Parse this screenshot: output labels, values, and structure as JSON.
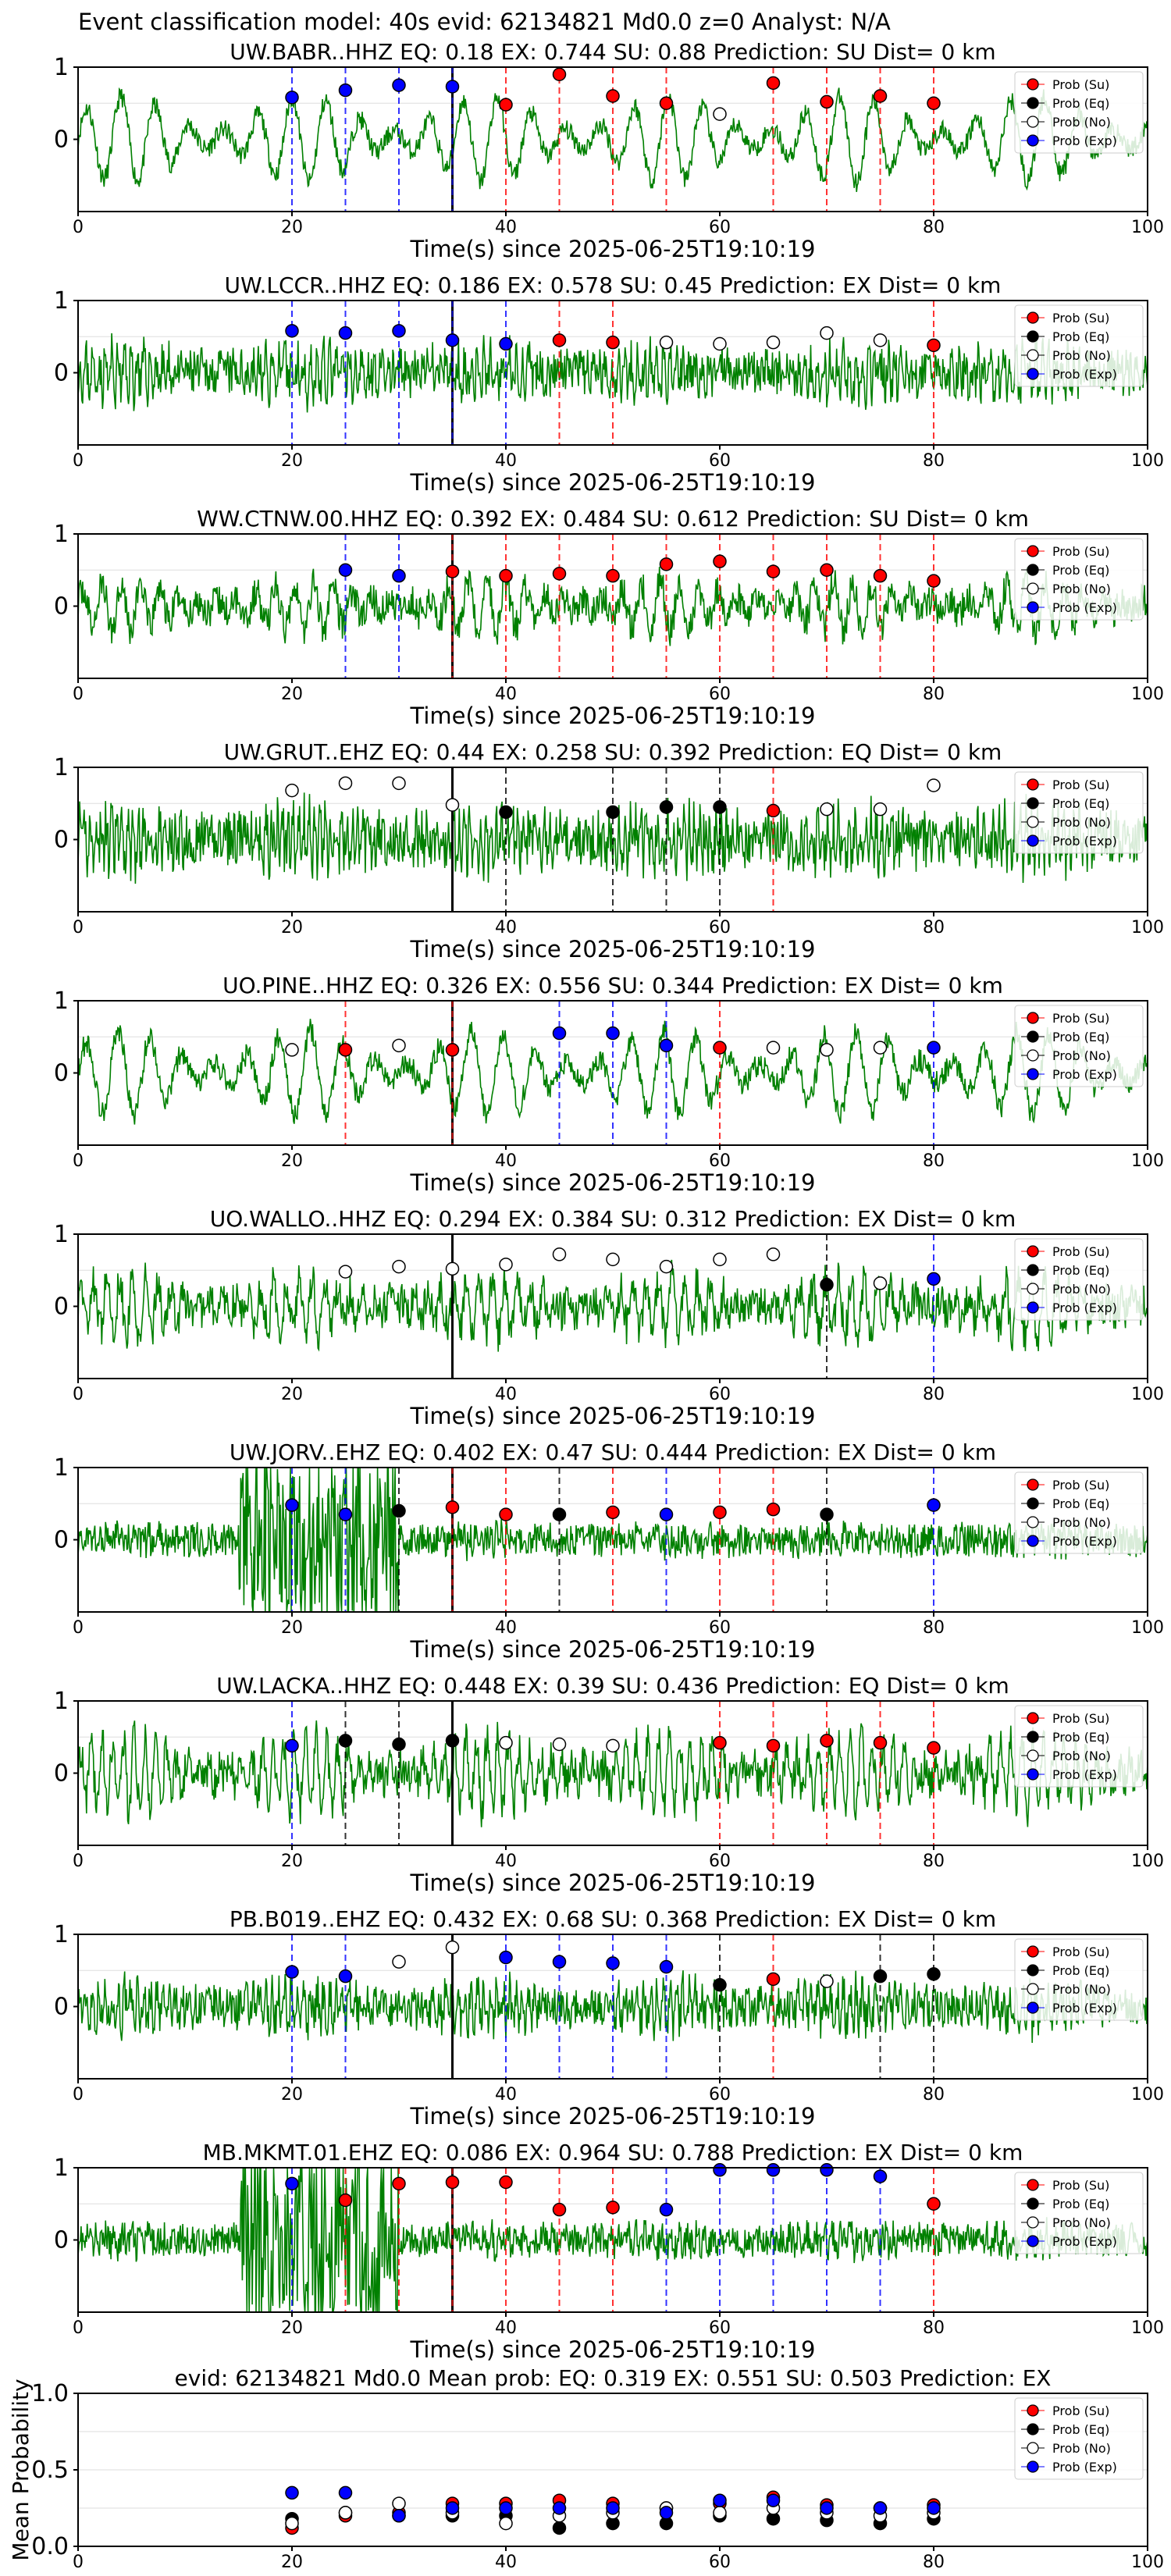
{
  "figure_title": "Event classification model: 40s evid: 62134821 Md0.0 z=0 Analyst: N/A",
  "legend": [
    "Prob (Su)",
    "Prob (Eq)",
    "Prob (No)",
    "Prob (Exp)"
  ],
  "colors": {
    "su": "#ff0000",
    "eq": "#000000",
    "no": "#ffffff",
    "exp": "#0000ff",
    "trace": "#008000",
    "marker_edge": "#000000"
  },
  "chart_data": [
    {
      "type": "line",
      "title": "UW.BABR..HHZ    EQ: 0.18   EX: 0.744   SU: 0.88    Prediction: SU     Dist= 0 km",
      "xlabel": "Time(s) since 2025-06-25T19:10:19",
      "xlim": [
        0,
        100
      ],
      "ylim": [
        -1,
        1
      ],
      "yticks": [
        0,
        1
      ],
      "xticks": [
        0,
        20,
        40,
        60,
        80,
        100
      ],
      "grid": true,
      "legend_position": "top-right",
      "vline_black": 35,
      "trace": {
        "amp": 0.6,
        "period": 3.2,
        "noise": 0.3,
        "seed": 11
      },
      "points": [
        [
          20,
          "exp",
          0.58
        ],
        [
          25,
          "exp",
          0.68
        ],
        [
          30,
          "exp",
          0.75
        ],
        [
          35,
          "exp",
          0.73
        ],
        [
          40,
          "su",
          0.48
        ],
        [
          45,
          "su",
          0.9
        ],
        [
          50,
          "su",
          0.6
        ],
        [
          55,
          "su",
          0.5
        ],
        [
          60,
          "no",
          0.35
        ],
        [
          65,
          "su",
          0.78
        ],
        [
          70,
          "su",
          0.52
        ],
        [
          75,
          "su",
          0.6
        ],
        [
          80,
          "su",
          0.5
        ]
      ]
    },
    {
      "type": "line",
      "title": "UW.LCCR..HHZ    EQ: 0.186   EX: 0.578   SU: 0.45    Prediction: EX     Dist= 0 km",
      "xlabel": "Time(s) since 2025-06-25T19:10:19",
      "xlim": [
        0,
        100
      ],
      "ylim": [
        -1,
        1
      ],
      "yticks": [
        0,
        1
      ],
      "xticks": [
        0,
        20,
        40,
        60,
        80,
        100
      ],
      "grid": true,
      "legend_position": "top-right",
      "vline_black": 35,
      "trace": {
        "amp": 0.25,
        "period": 0.6,
        "noise": 0.7,
        "seed": 23
      },
      "points": [
        [
          20,
          "exp",
          0.58
        ],
        [
          25,
          "exp",
          0.55
        ],
        [
          30,
          "exp",
          0.58
        ],
        [
          35,
          "exp",
          0.45
        ],
        [
          40,
          "exp",
          0.4
        ],
        [
          45,
          "su",
          0.45
        ],
        [
          50,
          "su",
          0.42
        ],
        [
          55,
          "no",
          0.42
        ],
        [
          60,
          "no",
          0.4
        ],
        [
          65,
          "no",
          0.42
        ],
        [
          70,
          "no",
          0.55
        ],
        [
          75,
          "no",
          0.45
        ],
        [
          80,
          "su",
          0.38
        ]
      ]
    },
    {
      "type": "line",
      "title": "WW.CTNW.00.HHZ    EQ: 0.392   EX: 0.484   SU: 0.612    Prediction: SU     Dist= 0 km",
      "xlabel": "Time(s) since 2025-06-25T19:10:19",
      "xlim": [
        0,
        100
      ],
      "ylim": [
        -1,
        1
      ],
      "yticks": [
        0,
        1
      ],
      "xticks": [
        0,
        20,
        40,
        60,
        80,
        100
      ],
      "grid": true,
      "legend_position": "top-right",
      "vline_black": 35,
      "trace": {
        "amp": 0.35,
        "period": 1.8,
        "noise": 0.5,
        "seed": 37
      },
      "points": [
        [
          25,
          "exp",
          0.5
        ],
        [
          30,
          "exp",
          0.42
        ],
        [
          35,
          "su",
          0.48
        ],
        [
          40,
          "su",
          0.42
        ],
        [
          45,
          "su",
          0.45
        ],
        [
          50,
          "su",
          0.42
        ],
        [
          55,
          "su",
          0.58
        ],
        [
          60,
          "su",
          0.62
        ],
        [
          65,
          "su",
          0.48
        ],
        [
          70,
          "su",
          0.5
        ],
        [
          75,
          "su",
          0.42
        ],
        [
          80,
          "su",
          0.35
        ]
      ]
    },
    {
      "type": "line",
      "title": "UW.GRUT..EHZ    EQ: 0.44   EX: 0.258   SU: 0.392    Prediction: EQ     Dist= 0 km",
      "xlabel": "Time(s) since 2025-06-25T19:10:19",
      "xlim": [
        0,
        100
      ],
      "ylim": [
        -1,
        1
      ],
      "yticks": [
        0,
        1
      ],
      "xticks": [
        0,
        20,
        40,
        60,
        80,
        100
      ],
      "grid": true,
      "legend_position": "top-right",
      "vline_black": 35,
      "trace": {
        "amp": 0.3,
        "period": 0.5,
        "noise": 0.8,
        "seed": 41
      },
      "points": [
        [
          20,
          "no",
          0.68
        ],
        [
          25,
          "no",
          0.78
        ],
        [
          30,
          "no",
          0.78
        ],
        [
          35,
          "no",
          0.48
        ],
        [
          40,
          "eq",
          0.38
        ],
        [
          50,
          "eq",
          0.38
        ],
        [
          55,
          "eq",
          0.45
        ],
        [
          60,
          "eq",
          0.45
        ],
        [
          65,
          "su",
          0.4
        ],
        [
          70,
          "no",
          0.42
        ],
        [
          75,
          "no",
          0.42
        ],
        [
          80,
          "no",
          0.75
        ]
      ]
    },
    {
      "type": "line",
      "title": "UO.PINE..HHZ    EQ: 0.326   EX: 0.556   SU: 0.344    Prediction: EX     Dist= 0 km",
      "xlabel": "Time(s) since 2025-06-25T19:10:19",
      "xlim": [
        0,
        100
      ],
      "ylim": [
        -1,
        1
      ],
      "yticks": [
        0,
        1
      ],
      "xticks": [
        0,
        20,
        40,
        60,
        80,
        100
      ],
      "grid": true,
      "legend_position": "top-right",
      "vline_black": 35,
      "trace": {
        "amp": 0.6,
        "period": 3.0,
        "noise": 0.35,
        "seed": 53
      },
      "points": [
        [
          20,
          "no",
          0.32
        ],
        [
          25,
          "su",
          0.32
        ],
        [
          30,
          "no",
          0.38
        ],
        [
          35,
          "su",
          0.32
        ],
        [
          45,
          "exp",
          0.55
        ],
        [
          50,
          "exp",
          0.55
        ],
        [
          55,
          "exp",
          0.38
        ],
        [
          60,
          "su",
          0.35
        ],
        [
          65,
          "no",
          0.35
        ],
        [
          70,
          "no",
          0.32
        ],
        [
          75,
          "no",
          0.35
        ],
        [
          80,
          "exp",
          0.35
        ]
      ]
    },
    {
      "type": "line",
      "title": "UO.WALLO..HHZ    EQ: 0.294   EX: 0.384   SU: 0.312    Prediction: EX     Dist= 0 km",
      "xlabel": "Time(s) since 2025-06-25T19:10:19",
      "xlim": [
        0,
        100
      ],
      "ylim": [
        -1,
        1
      ],
      "yticks": [
        0,
        1
      ],
      "xticks": [
        0,
        20,
        40,
        60,
        80,
        100
      ],
      "grid": true,
      "legend_position": "top-right",
      "vline_black": 35,
      "trace": {
        "amp": 0.4,
        "period": 1.2,
        "noise": 0.6,
        "seed": 67
      },
      "points": [
        [
          25,
          "no",
          0.48
        ],
        [
          30,
          "no",
          0.55
        ],
        [
          35,
          "no",
          0.52
        ],
        [
          40,
          "no",
          0.58
        ],
        [
          45,
          "no",
          0.72
        ],
        [
          50,
          "no",
          0.65
        ],
        [
          55,
          "no",
          0.55
        ],
        [
          60,
          "no",
          0.65
        ],
        [
          65,
          "no",
          0.72
        ],
        [
          70,
          "eq",
          0.3
        ],
        [
          75,
          "no",
          0.32
        ],
        [
          80,
          "exp",
          0.38
        ]
      ]
    },
    {
      "type": "line",
      "title": "UW.JORV..EHZ    EQ: 0.402   EX: 0.47   SU: 0.444    Prediction: EX     Dist= 0 km",
      "xlabel": "Time(s) since 2025-06-25T19:10:19",
      "xlim": [
        0,
        100
      ],
      "ylim": [
        -1,
        1
      ],
      "yticks": [
        0,
        1
      ],
      "xticks": [
        0,
        20,
        40,
        60,
        80,
        100
      ],
      "grid": true,
      "legend_position": "top-right",
      "vline_black": 35,
      "trace": {
        "amp": 0.08,
        "period": 0.5,
        "noise": 0.5,
        "seed": 71
      },
      "points": [
        [
          20,
          "exp",
          0.48
        ],
        [
          25,
          "exp",
          0.35
        ],
        [
          30,
          "eq",
          0.4
        ],
        [
          35,
          "su",
          0.45
        ],
        [
          40,
          "su",
          0.35
        ],
        [
          45,
          "eq",
          0.35
        ],
        [
          50,
          "su",
          0.38
        ],
        [
          55,
          "exp",
          0.35
        ],
        [
          60,
          "su",
          0.38
        ],
        [
          65,
          "su",
          0.42
        ],
        [
          70,
          "eq",
          0.35
        ],
        [
          80,
          "exp",
          0.48
        ]
      ]
    },
    {
      "type": "line",
      "title": "UW.LACKA..HHZ    EQ: 0.448   EX: 0.39   SU: 0.436    Prediction: EQ     Dist= 0 km",
      "xlabel": "Time(s) since 2025-06-25T19:10:19",
      "xlim": [
        0,
        100
      ],
      "ylim": [
        -1,
        1
      ],
      "yticks": [
        0,
        1
      ],
      "xticks": [
        0,
        20,
        40,
        60,
        80,
        100
      ],
      "grid": true,
      "legend_position": "top-right",
      "vline_black": 35,
      "trace": {
        "amp": 0.5,
        "period": 1.0,
        "noise": 0.6,
        "seed": 83
      },
      "points": [
        [
          20,
          "exp",
          0.38
        ],
        [
          25,
          "eq",
          0.45
        ],
        [
          30,
          "eq",
          0.4
        ],
        [
          35,
          "eq",
          0.45
        ],
        [
          40,
          "no",
          0.42
        ],
        [
          45,
          "no",
          0.4
        ],
        [
          50,
          "no",
          0.38
        ],
        [
          60,
          "su",
          0.42
        ],
        [
          65,
          "su",
          0.38
        ],
        [
          70,
          "su",
          0.45
        ],
        [
          75,
          "su",
          0.42
        ],
        [
          80,
          "su",
          0.35
        ]
      ]
    },
    {
      "type": "line",
      "title": "PB.B019..EHZ    EQ: 0.432   EX: 0.68   SU: 0.368    Prediction: EX     Dist= 0 km",
      "xlabel": "Time(s) since 2025-06-25T19:10:19",
      "xlim": [
        0,
        100
      ],
      "ylim": [
        -1,
        1
      ],
      "yticks": [
        0,
        1
      ],
      "xticks": [
        0,
        20,
        40,
        60,
        80,
        100
      ],
      "grid": true,
      "legend_position": "top-right",
      "vline_black": 35,
      "trace": {
        "amp": 0.25,
        "period": 0.6,
        "noise": 0.6,
        "seed": 97
      },
      "points": [
        [
          20,
          "exp",
          0.48
        ],
        [
          25,
          "exp",
          0.42
        ],
        [
          30,
          "no",
          0.62
        ],
        [
          35,
          "no",
          0.82
        ],
        [
          40,
          "exp",
          0.68
        ],
        [
          45,
          "exp",
          0.62
        ],
        [
          50,
          "exp",
          0.6
        ],
        [
          55,
          "exp",
          0.55
        ],
        [
          60,
          "eq",
          0.3
        ],
        [
          65,
          "su",
          0.38
        ],
        [
          70,
          "no",
          0.35
        ],
        [
          75,
          "eq",
          0.42
        ],
        [
          80,
          "eq",
          0.45
        ]
      ]
    },
    {
      "type": "line",
      "title": "MB.MKMT.01.EHZ    EQ: 0.086   EX: 0.964   SU: 0.788    Prediction: EX     Dist= 0 km",
      "xlabel": "Time(s) since 2025-06-25T19:10:19",
      "xlim": [
        0,
        100
      ],
      "ylim": [
        -1,
        1
      ],
      "yticks": [
        0,
        1
      ],
      "xticks": [
        0,
        20,
        40,
        60,
        80,
        100
      ],
      "grid": true,
      "legend_position": "top-right",
      "vline_black": 35,
      "trace": {
        "amp": 0.1,
        "period": 0.8,
        "noise": 0.5,
        "seed": 101
      },
      "points": [
        [
          20,
          "exp",
          0.78
        ],
        [
          25,
          "su",
          0.55
        ],
        [
          30,
          "su",
          0.78
        ],
        [
          35,
          "su",
          0.8
        ],
        [
          40,
          "su",
          0.8
        ],
        [
          45,
          "su",
          0.42
        ],
        [
          50,
          "su",
          0.45
        ],
        [
          55,
          "exp",
          0.42
        ],
        [
          60,
          "exp",
          0.97
        ],
        [
          65,
          "exp",
          0.97
        ],
        [
          70,
          "exp",
          0.97
        ],
        [
          75,
          "exp",
          0.88
        ],
        [
          80,
          "su",
          0.5
        ]
      ]
    },
    {
      "type": "scatter",
      "title": "evid: 62134821  Md0.0   Mean prob:    EQ: 0.319  EX: 0.551  SU: 0.503   Prediction: EX",
      "xlabel": "",
      "ylabel": "Mean Probability",
      "xlim": [
        0,
        100
      ],
      "ylim": [
        0,
        1
      ],
      "yticks": [
        0.0,
        0.5,
        1.0
      ],
      "xticks": [
        0,
        20,
        40,
        60,
        80,
        100
      ],
      "grid": true,
      "legend_position": "top-right",
      "series": [
        {
          "name": "Prob (Su)",
          "cls": "su",
          "x": [
            20,
            25,
            30,
            35,
            40,
            45,
            50,
            55,
            60,
            65,
            70,
            75,
            80
          ],
          "y": [
            0.12,
            0.2,
            0.22,
            0.28,
            0.28,
            0.3,
            0.28,
            0.25,
            0.28,
            0.32,
            0.27,
            0.25,
            0.27
          ]
        },
        {
          "name": "Prob (Eq)",
          "cls": "eq",
          "x": [
            20,
            25,
            30,
            35,
            40,
            45,
            50,
            55,
            60,
            65,
            70,
            75,
            80
          ],
          "y": [
            0.18,
            0.22,
            0.2,
            0.2,
            0.2,
            0.12,
            0.15,
            0.15,
            0.2,
            0.18,
            0.17,
            0.15,
            0.18
          ]
        },
        {
          "name": "Prob (No)",
          "cls": "no",
          "x": [
            20,
            25,
            30,
            35,
            40,
            45,
            50,
            55,
            60,
            65,
            70,
            75,
            80
          ],
          "y": [
            0.15,
            0.22,
            0.28,
            0.22,
            0.15,
            0.2,
            0.22,
            0.25,
            0.22,
            0.25,
            0.22,
            0.2,
            0.22
          ]
        },
        {
          "name": "Prob (Exp)",
          "cls": "exp",
          "x": [
            20,
            25,
            30,
            35,
            40,
            45,
            50,
            55,
            60,
            65,
            70,
            75,
            80
          ],
          "y": [
            0.35,
            0.35,
            0.2,
            0.25,
            0.25,
            0.25,
            0.25,
            0.22,
            0.3,
            0.3,
            0.25,
            0.25,
            0.25
          ]
        }
      ]
    }
  ]
}
